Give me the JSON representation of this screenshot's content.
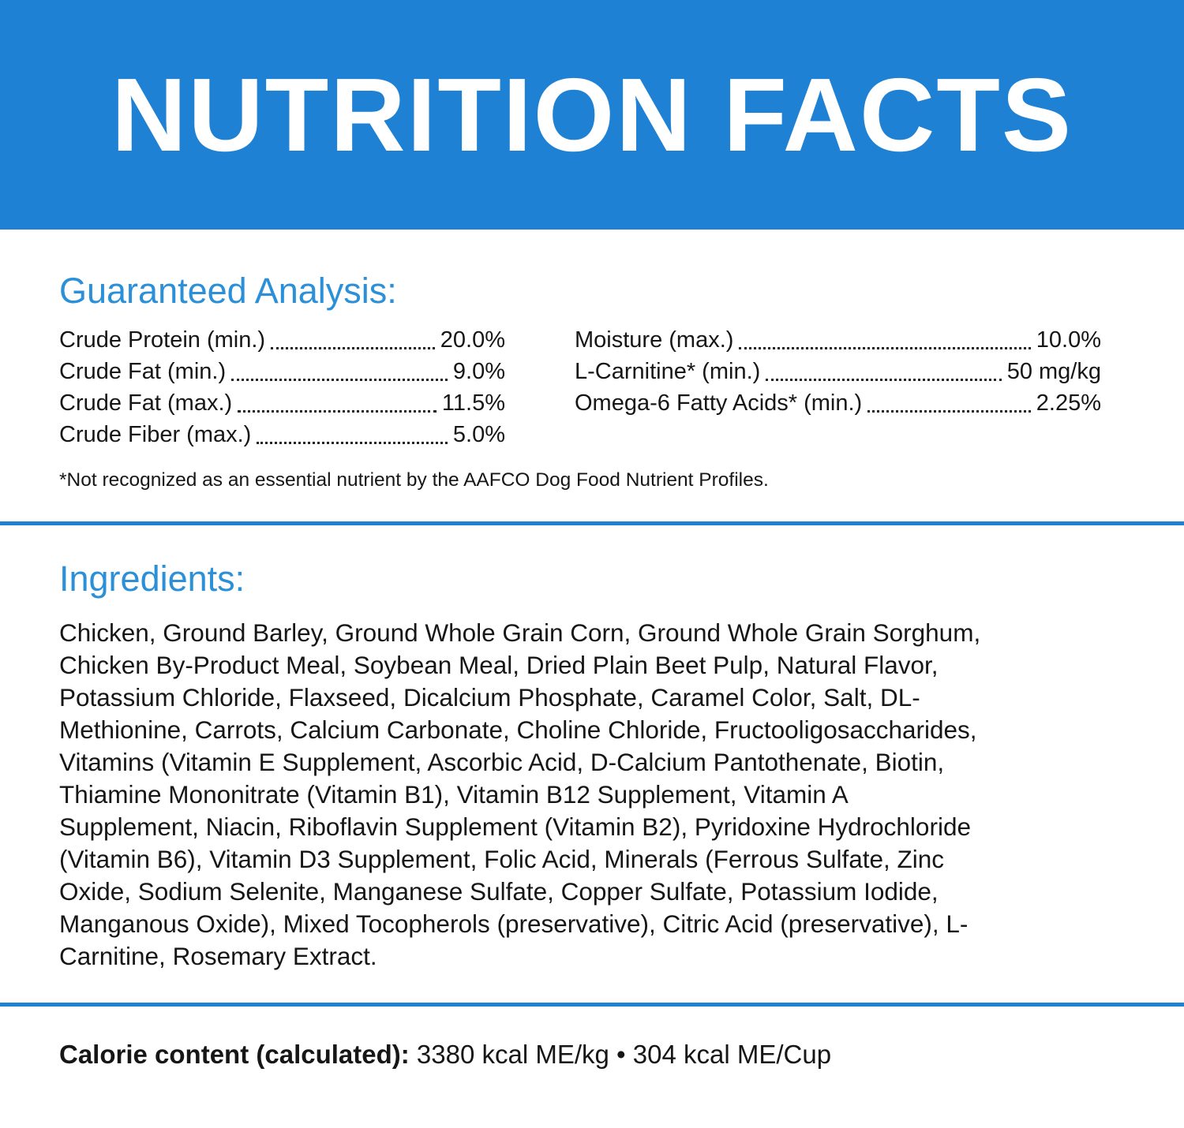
{
  "colors": {
    "banner_blue": "#1e81d4",
    "heading_blue": "#2b90d7",
    "divider_blue": "#1e81d4",
    "text_black": "#161616",
    "banner_text_white": "#ffffff"
  },
  "header": {
    "title": "NUTRITION FACTS"
  },
  "guaranteed_analysis": {
    "heading": "Guaranteed Analysis:",
    "left_column": [
      {
        "label": "Crude Protein (min.)",
        "value": "20.0%"
      },
      {
        "label": "Crude Fat (min.)",
        "value": "9.0%"
      },
      {
        "label": "Crude Fat (max.)",
        "value": "11.5%"
      },
      {
        "label": "Crude Fiber (max.)",
        "value": "5.0%"
      }
    ],
    "right_column": [
      {
        "label": "Moisture (max.)",
        "value": "10.0%"
      },
      {
        "label": "L-Carnitine* (min.)",
        "value": "50 mg/kg"
      },
      {
        "label": "Omega-6 Fatty Acids* (min.)",
        "value": "2.25%"
      }
    ],
    "footnote": "*Not recognized as an essential nutrient by the AAFCO Dog Food Nutrient Profiles."
  },
  "ingredients": {
    "heading": "Ingredients:",
    "text": "Chicken, Ground Barley, Ground Whole Grain Corn, Ground Whole Grain Sorghum, Chicken By-Product Meal, Soybean Meal, Dried Plain Beet Pulp, Natural Flavor, Potassium Chloride, Flaxseed, Dicalcium Phosphate, Caramel Color, Salt, DL-Methionine, Carrots, Calcium Carbonate, Choline Chloride, Fructooligosaccharides, Vitamins (Vitamin E Supplement, Ascorbic Acid, D-Calcium Pantothenate, Biotin, Thiamine Mononitrate (Vitamin B1), Vitamin B12 Supplement, Vitamin A Supplement, Niacin, Riboflavin Supplement (Vitamin B2), Pyridoxine Hydrochloride (Vitamin B6), Vitamin D3 Supplement, Folic Acid, Minerals (Ferrous Sulfate, Zinc Oxide, Sodium Selenite, Manganese Sulfate, Copper Sulfate, Potassium Iodide, Manganous Oxide), Mixed Tocopherols (preservative), Citric Acid (preservative), L-Carnitine, Rosemary Extract."
  },
  "calorie_content": {
    "label": "Calorie content (calculated):",
    "value": "3380 kcal ME/kg • 304 kcal ME/Cup"
  }
}
